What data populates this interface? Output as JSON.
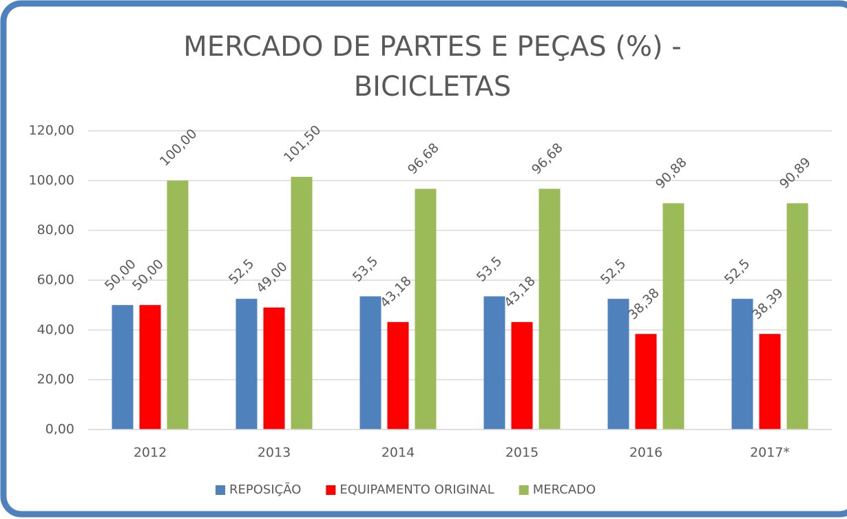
{
  "chart_data": {
    "type": "bar",
    "title": [
      "MERCADO DE PARTES E PEÇAS (%) -",
      "BICICLETAS"
    ],
    "categories": [
      "2012",
      "2013",
      "2014",
      "2015",
      "2016",
      "2017*"
    ],
    "series": [
      {
        "name": "REPOSIÇÃO",
        "color": "#4f81bd",
        "values": [
          50,
          52.5,
          53.5,
          53.5,
          52.5,
          52.5
        ],
        "value_labels": [
          "50,00",
          "52,5",
          "53,5",
          "53,5",
          "52,5",
          "52,5"
        ]
      },
      {
        "name": "EQUIPAMENTO ORIGINAL",
        "color": "#ff0000",
        "values": [
          50,
          49,
          43.18,
          43.18,
          38.38,
          38.39
        ],
        "value_labels": [
          "50,00",
          "49,00",
          "43,18",
          "43,18",
          "38,38",
          "38,39"
        ]
      },
      {
        "name": "MERCADO",
        "color": "#9bbb59",
        "values": [
          100,
          101.5,
          96.68,
          96.68,
          90.88,
          90.89
        ],
        "value_labels": [
          "100,00",
          "101,50",
          "96,68",
          "96,68",
          "90,88",
          "90,89"
        ]
      }
    ],
    "ylim": [
      0,
      120
    ],
    "yticks": [
      {
        "value": 0,
        "label": "0,00"
      },
      {
        "value": 20,
        "label": "20,00"
      },
      {
        "value": 40,
        "label": "40,00"
      },
      {
        "value": 60,
        "label": "60,00"
      },
      {
        "value": 80,
        "label": "80,00"
      },
      {
        "value": 100,
        "label": "100,00"
      },
      {
        "value": 120,
        "label": "120,00"
      }
    ],
    "grid": true,
    "legend": "bottom"
  }
}
